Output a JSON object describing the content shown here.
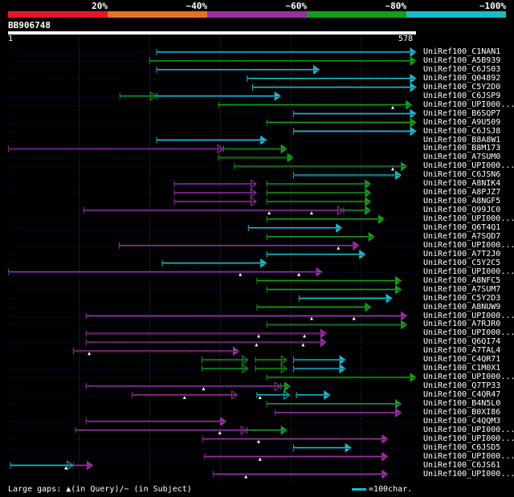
{
  "legend": {
    "labels": [
      "20%",
      "~40%",
      "~60%",
      "~80%",
      "~100%"
    ],
    "colors": [
      "#e5162a",
      "#e8731f",
      "#9c2fa0",
      "#179c1b",
      "#19bcc8"
    ]
  },
  "query": {
    "id": "BB906748",
    "start": "1",
    "end": "578",
    "length": 578
  },
  "footer": {
    "gap_legend": "Large gaps: ▲(in Query)/− (in Subject)",
    "scale_label": "=100char."
  },
  "hits": [
    {
      "name": "UniRef100_C1NAN1",
      "segs": [
        {
          "s": 210,
          "e": 578,
          "c": "#19bcc8"
        }
      ],
      "gaps": []
    },
    {
      "name": "UniRef100_A5B939",
      "segs": [
        {
          "s": 200,
          "e": 578,
          "c": "#179c1b"
        }
      ],
      "gaps": []
    },
    {
      "name": "UniRef100_C6JS03",
      "segs": [
        {
          "s": 210,
          "e": 441,
          "c": "#19bcc8"
        }
      ],
      "gaps": []
    },
    {
      "name": "UniRef100_Q04892",
      "segs": [
        {
          "s": 338,
          "e": 578,
          "c": "#19bcc8"
        }
      ],
      "gaps": []
    },
    {
      "name": "UniRef100_C5Y2D0",
      "segs": [
        {
          "s": 346,
          "e": 578,
          "c": "#19bcc8"
        }
      ],
      "gaps": []
    },
    {
      "name": "UniRef100_C6JSP9",
      "segs": [
        {
          "s": 158,
          "e": 210,
          "c": "#179c1b"
        },
        {
          "s": 210,
          "e": 386,
          "c": "#19bcc8"
        }
      ],
      "gaps": []
    },
    {
      "name": "UniRef100_UPI000...",
      "segs": [
        {
          "s": 298,
          "e": 572,
          "c": "#179c1b"
        }
      ],
      "gaps": [
        545
      ]
    },
    {
      "name": "UniRef100_B6SQP7",
      "segs": [
        {
          "s": 404,
          "e": 578,
          "c": "#19bcc8"
        }
      ],
      "gaps": []
    },
    {
      "name": "UniRef100_A9U509",
      "segs": [
        {
          "s": 366,
          "e": 578,
          "c": "#179c1b"
        }
      ],
      "gaps": []
    },
    {
      "name": "UniRef100_C6JSJ8",
      "segs": [
        {
          "s": 404,
          "e": 578,
          "c": "#19bcc8"
        }
      ],
      "gaps": []
    },
    {
      "name": "UniRef100_B8A8W1",
      "segs": [
        {
          "s": 210,
          "e": 366,
          "c": "#19bcc8"
        }
      ],
      "gaps": []
    },
    {
      "name": "UniRef100_B8M173",
      "segs": [
        {
          "s": 0,
          "e": 305,
          "c": "#9c2fa0"
        },
        {
          "s": 305,
          "e": 395,
          "c": "#179c1b"
        }
      ],
      "gaps": []
    },
    {
      "name": "UniRef100_A7SUM0",
      "segs": [
        {
          "s": 298,
          "e": 404,
          "c": "#179c1b"
        }
      ],
      "gaps": []
    },
    {
      "name": "UniRef100_UPI000...",
      "segs": [
        {
          "s": 320,
          "e": 565,
          "c": "#179c1b"
        }
      ],
      "gaps": [
        545
      ]
    },
    {
      "name": "UniRef100_C6JSN6",
      "segs": [
        {
          "s": 404,
          "e": 557,
          "c": "#19bcc8"
        }
      ],
      "gaps": []
    },
    {
      "name": "UniRef100_A8NIK4",
      "segs": [
        {
          "s": 235,
          "e": 352,
          "c": "#9c2fa0"
        },
        {
          "s": 366,
          "e": 514,
          "c": "#179c1b"
        }
      ],
      "gaps": []
    },
    {
      "name": "UniRef100_A8PJZ7",
      "segs": [
        {
          "s": 235,
          "e": 352,
          "c": "#9c2fa0"
        },
        {
          "s": 366,
          "e": 514,
          "c": "#179c1b"
        }
      ],
      "gaps": []
    },
    {
      "name": "UniRef100_A8NGF5",
      "segs": [
        {
          "s": 235,
          "e": 352,
          "c": "#9c2fa0"
        },
        {
          "s": 366,
          "e": 514,
          "c": "#179c1b"
        }
      ],
      "gaps": []
    },
    {
      "name": "UniRef100_Q99JC0",
      "segs": [
        {
          "s": 107,
          "e": 475,
          "c": "#9c2fa0"
        },
        {
          "s": 475,
          "e": 514,
          "c": "#179c1b"
        }
      ],
      "gaps": [
        370,
        430
      ]
    },
    {
      "name": "UniRef100_UPI000...",
      "segs": [
        {
          "s": 366,
          "e": 533,
          "c": "#179c1b"
        }
      ],
      "gaps": []
    },
    {
      "name": "UniRef100_Q6T4Q1",
      "segs": [
        {
          "s": 340,
          "e": 473,
          "c": "#19bcc8"
        }
      ],
      "gaps": []
    },
    {
      "name": "UniRef100_A7SQD7",
      "segs": [
        {
          "s": 366,
          "e": 519,
          "c": "#179c1b"
        }
      ],
      "gaps": []
    },
    {
      "name": "UniRef100_UPI000...",
      "segs": [
        {
          "s": 157,
          "e": 497,
          "c": "#9c2fa0"
        }
      ],
      "gaps": [
        468
      ]
    },
    {
      "name": "UniRef100_A7T2J0",
      "segs": [
        {
          "s": 366,
          "e": 506,
          "c": "#19bcc8"
        }
      ],
      "gaps": []
    },
    {
      "name": "UniRef100_C5Y2C5",
      "segs": [
        {
          "s": 218,
          "e": 366,
          "c": "#19bcc8"
        }
      ],
      "gaps": []
    },
    {
      "name": "UniRef100_UPI000...",
      "segs": [
        {
          "s": 0,
          "e": 445,
          "c": "#9c2fa0"
        }
      ],
      "gaps": [
        329,
        412
      ]
    },
    {
      "name": "UniRef100_A8NFC5",
      "segs": [
        {
          "s": 352,
          "e": 557,
          "c": "#179c1b"
        }
      ],
      "gaps": []
    },
    {
      "name": "UniRef100_A7SUM7",
      "segs": [
        {
          "s": 366,
          "e": 557,
          "c": "#179c1b"
        }
      ],
      "gaps": []
    },
    {
      "name": "UniRef100_C5Y2D3",
      "segs": [
        {
          "s": 412,
          "e": 544,
          "c": "#19bcc8"
        }
      ],
      "gaps": []
    },
    {
      "name": "UniRef100_A8NUW9",
      "segs": [
        {
          "s": 352,
          "e": 514,
          "c": "#179c1b"
        }
      ],
      "gaps": []
    },
    {
      "name": "UniRef100_UPI000...",
      "segs": [
        {
          "s": 110,
          "e": 565,
          "c": "#9c2fa0"
        }
      ],
      "gaps": [
        430,
        490
      ]
    },
    {
      "name": "UniRef100_A7RJR0",
      "segs": [
        {
          "s": 366,
          "e": 565,
          "c": "#179c1b"
        }
      ],
      "gaps": []
    },
    {
      "name": "UniRef100_UPI000...",
      "segs": [
        {
          "s": 110,
          "e": 451,
          "c": "#9c2fa0"
        }
      ],
      "gaps": [
        355,
        420
      ]
    },
    {
      "name": "UniRef100_Q6QI74",
      "segs": [
        {
          "s": 110,
          "e": 451,
          "c": "#9c2fa0"
        }
      ],
      "gaps": [
        352,
        418
      ]
    },
    {
      "name": "UniRef100_A7TAL4",
      "segs": [
        {
          "s": 92,
          "e": 327,
          "c": "#9c2fa0"
        }
      ],
      "gaps": [
        115
      ]
    },
    {
      "name": "UniRef100_C4QR71",
      "segs": [
        {
          "s": 274,
          "e": 340,
          "c": "#179c1b"
        },
        {
          "s": 350,
          "e": 395,
          "c": "#179c1b"
        },
        {
          "s": 404,
          "e": 478,
          "c": "#19bcc8"
        }
      ],
      "gaps": []
    },
    {
      "name": "UniRef100_C1M0X1",
      "segs": [
        {
          "s": 274,
          "e": 340,
          "c": "#179c1b"
        },
        {
          "s": 350,
          "e": 395,
          "c": "#179c1b"
        },
        {
          "s": 404,
          "e": 478,
          "c": "#19bcc8"
        }
      ],
      "gaps": []
    },
    {
      "name": "UniRef100_UPI000...",
      "segs": [
        {
          "s": 366,
          "e": 578,
          "c": "#179c1b"
        }
      ],
      "gaps": []
    },
    {
      "name": "UniRef100_Q7TP33",
      "segs": [
        {
          "s": 110,
          "e": 386,
          "c": "#9c2fa0"
        },
        {
          "s": 386,
          "e": 400,
          "c": "#179c1b"
        }
      ],
      "gaps": [
        277
      ]
    },
    {
      "name": "UniRef100_C4QR47",
      "segs": [
        {
          "s": 175,
          "e": 325,
          "c": "#9c2fa0"
        },
        {
          "s": 352,
          "e": 399,
          "c": "#19bcc8"
        },
        {
          "s": 408,
          "e": 456,
          "c": "#19bcc8"
        }
      ],
      "gaps": [
        250,
        357
      ]
    },
    {
      "name": "UniRef100_B4N5L0",
      "segs": [
        {
          "s": 366,
          "e": 557,
          "c": "#179c1b"
        }
      ],
      "gaps": []
    },
    {
      "name": "UniRef100_B0XI86",
      "segs": [
        {
          "s": 378,
          "e": 557,
          "c": "#9c2fa0"
        }
      ],
      "gaps": []
    },
    {
      "name": "UniRef100_C4QQM3",
      "segs": [
        {
          "s": 110,
          "e": 309,
          "c": "#9c2fa0"
        }
      ],
      "gaps": []
    },
    {
      "name": "UniRef100_UPI000...",
      "segs": [
        {
          "s": 95,
          "e": 338,
          "c": "#9c2fa0"
        },
        {
          "s": 338,
          "e": 395,
          "c": "#179c1b"
        }
      ],
      "gaps": [
        300
      ]
    },
    {
      "name": "UniRef100_UPI000...",
      "segs": [
        {
          "s": 275,
          "e": 538,
          "c": "#9c2fa0"
        }
      ],
      "gaps": [
        355
      ]
    },
    {
      "name": "UniRef100_C6JSD5",
      "segs": [
        {
          "s": 404,
          "e": 486,
          "c": "#19bcc8"
        }
      ],
      "gaps": []
    },
    {
      "name": "UniRef100_UPI000...",
      "segs": [
        {
          "s": 278,
          "e": 538,
          "c": "#9c2fa0"
        }
      ],
      "gaps": [
        357
      ]
    },
    {
      "name": "UniRef100_C6JS61",
      "segs": [
        {
          "s": 3,
          "e": 92,
          "c": "#19bcc8"
        },
        {
          "s": 92,
          "e": 120,
          "c": "#9c2fa0"
        }
      ],
      "gaps": [
        82
      ]
    },
    {
      "name": "UniRef100_UPI000...",
      "segs": [
        {
          "s": 290,
          "e": 538,
          "c": "#9c2fa0"
        }
      ],
      "gaps": [
        337
      ]
    }
  ]
}
